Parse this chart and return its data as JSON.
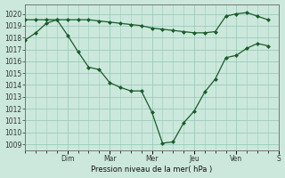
{
  "background_color": "#cce8dc",
  "grid_color": "#99ccbb",
  "line_color": "#1a5c2a",
  "marker_color": "#1a5c2a",
  "xlabel": "Pression niveau de la mer( hPa )",
  "ylim": [
    1008.5,
    1020.8
  ],
  "yticks": [
    1009,
    1010,
    1011,
    1012,
    1013,
    1014,
    1015,
    1016,
    1017,
    1018,
    1019,
    1020
  ],
  "xlim": [
    0,
    24
  ],
  "day_labels": [
    "Dim",
    "Mar",
    "Mer",
    "Jeu",
    "Ven",
    "S"
  ],
  "day_positions": [
    4,
    8,
    12,
    16,
    20,
    24
  ],
  "minor_x_positions": [
    0,
    1,
    2,
    3,
    4,
    5,
    6,
    7,
    8,
    9,
    10,
    11,
    12,
    13,
    14,
    15,
    16,
    17,
    18,
    19,
    20,
    21,
    22,
    23,
    24
  ],
  "line1_x": [
    0,
    1,
    2,
    3,
    4,
    5,
    6,
    7,
    8,
    9,
    10,
    11,
    12,
    13,
    14,
    15,
    16,
    17,
    18,
    19,
    20,
    21,
    22,
    23
  ],
  "line1_y": [
    1019.5,
    1019.5,
    1019.5,
    1019.5,
    1019.5,
    1019.5,
    1019.5,
    1019.4,
    1019.3,
    1019.2,
    1019.1,
    1019.0,
    1018.8,
    1018.7,
    1018.6,
    1018.5,
    1018.4,
    1018.4,
    1018.5,
    1019.8,
    1020.0,
    1020.1,
    1019.8,
    1019.5
  ],
  "line2_x": [
    0,
    1,
    2,
    3,
    4,
    5,
    6,
    7,
    8,
    9,
    10,
    11,
    12,
    13,
    14,
    15,
    16,
    17,
    18,
    19,
    20,
    21,
    22,
    23
  ],
  "line2_y": [
    1017.8,
    1018.4,
    1019.2,
    1019.5,
    1018.2,
    1016.8,
    1015.5,
    1015.3,
    1014.2,
    1013.8,
    1013.5,
    1013.5,
    1011.7,
    1009.1,
    1009.2,
    1010.8,
    1011.8,
    1013.4,
    1014.5,
    1016.3,
    1016.5,
    1017.1,
    1017.5,
    1017.3
  ]
}
